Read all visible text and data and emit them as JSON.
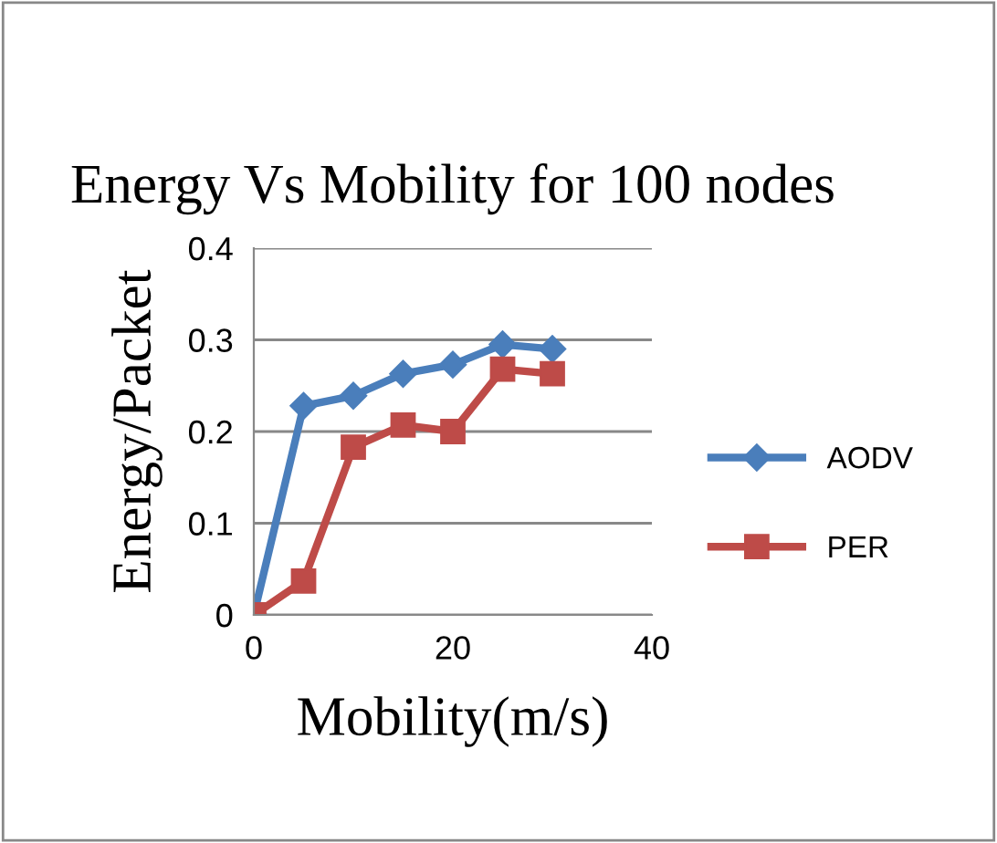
{
  "chart_data": {
    "type": "line",
    "title": "Energy Vs Mobility for 100 nodes",
    "xlabel": "Mobility(m/s)",
    "ylabel": "Energy/Packet",
    "x": [
      0,
      5,
      10,
      15,
      20,
      25,
      30
    ],
    "series": [
      {
        "name": "AODV",
        "color": "#4a7ebb",
        "marker": "diamond",
        "values": [
          0,
          0.228,
          0.239,
          0.263,
          0.273,
          0.295,
          0.29
        ]
      },
      {
        "name": "PER",
        "color": "#be4b48",
        "marker": "square",
        "values": [
          0,
          0.037,
          0.183,
          0.207,
          0.2,
          0.268,
          0.263
        ]
      }
    ],
    "xlim": [
      0,
      40
    ],
    "xticks": [
      0,
      20,
      40
    ],
    "ylim": [
      0,
      0.4
    ],
    "yticks": [
      0,
      0.1,
      0.2,
      0.3,
      0.4
    ],
    "grid": "y",
    "legend": "right",
    "line_style": "solid"
  }
}
